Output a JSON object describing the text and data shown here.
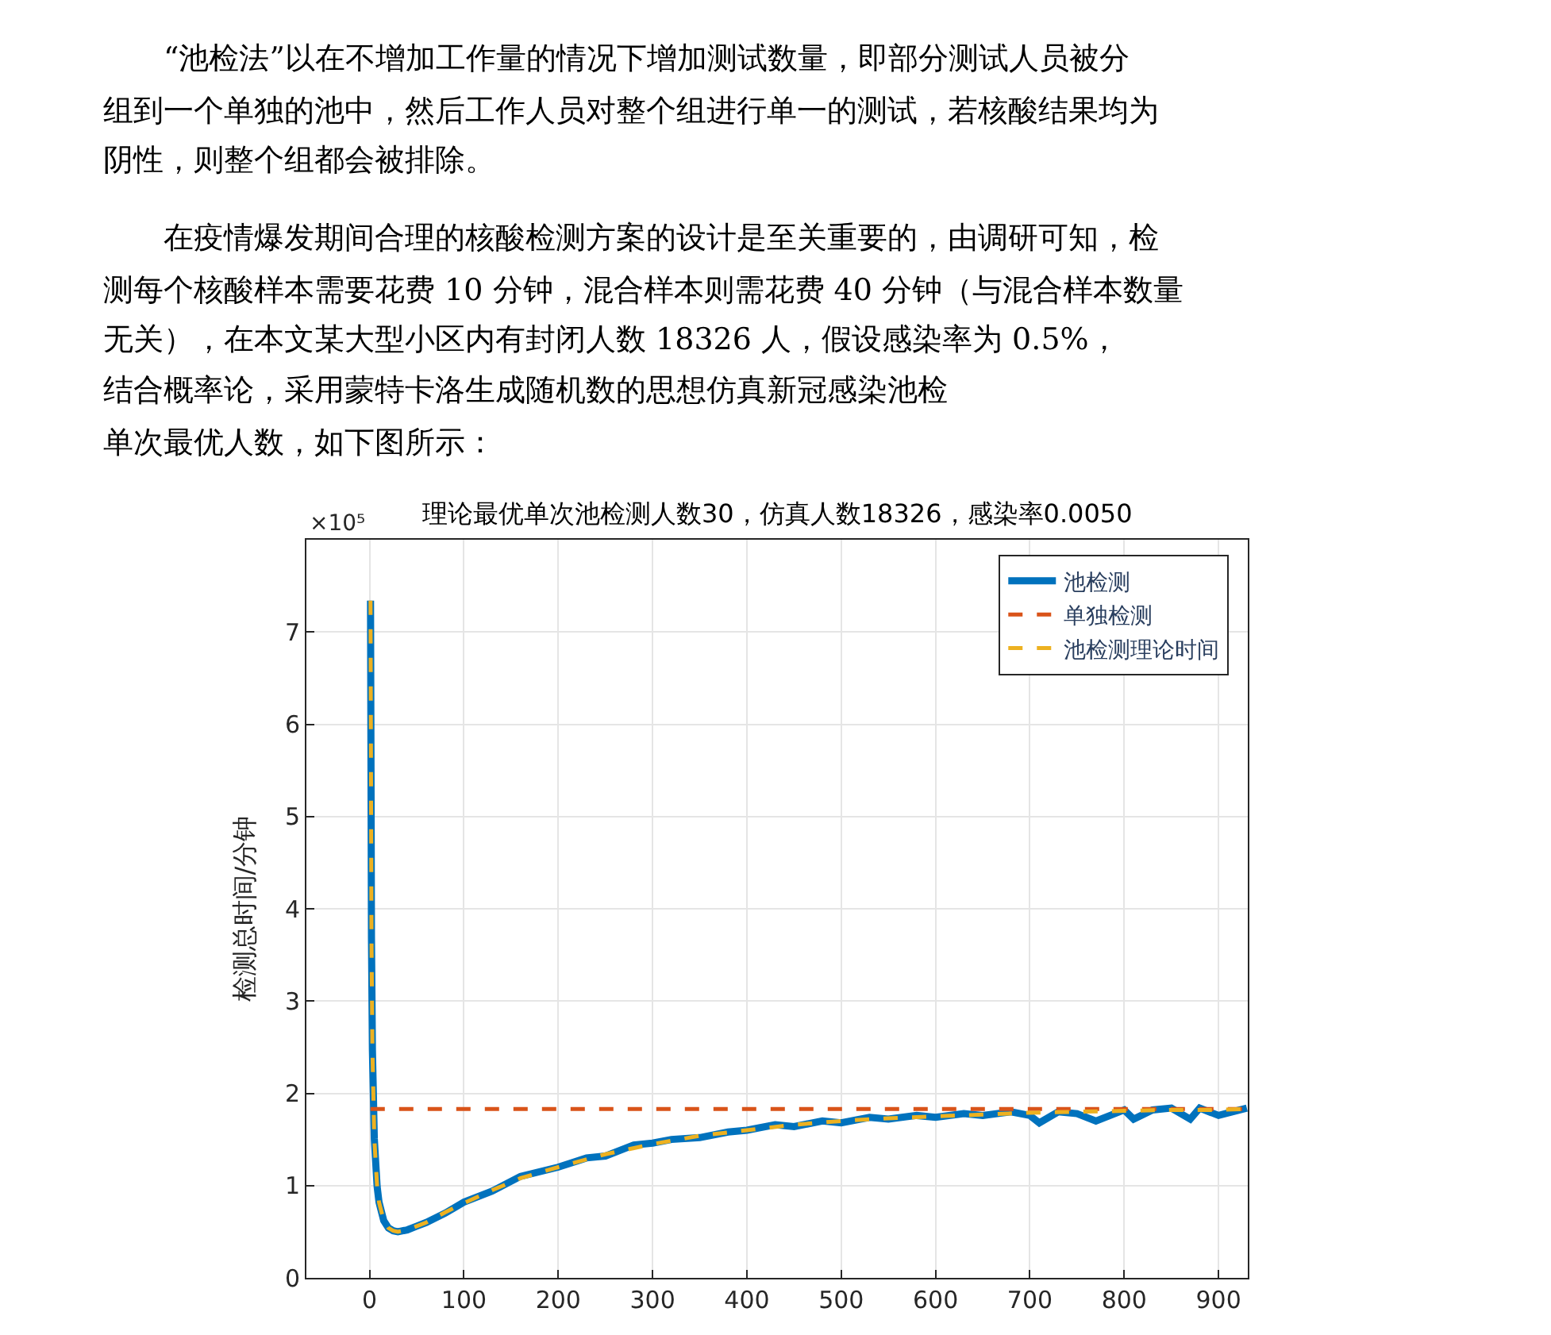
{
  "chart_data": {
    "type": "line",
    "title": "理论最优单次池检测人数30，仿真人数18326，感染率0.0050",
    "ylabel": "检测总时间/分钟",
    "annotations": [
      "　　“池检法”以在不增加工作量的情况下增加测试数量，即部分测试人员被分",
      "组到一个单独的池中，然后工作人员对整个组进行单一的测试，若核酸结果均为",
      "阴性，则整个组都会被排除。",
      "　　在疫情爆发期间合理的核酸检测方案的设计是至关重要的，由调研可知，检",
      "测每个核酸样本需要花费 10 分钟，混合样本则需花费 40 分钟（与混合样本数量",
      "无关），在本文某大型小区内有封闭人数 18326 人，假设感染率为 0.5%，",
      "结合概率论，采用蒙特卡洛生成随机数的思想仿真新冠感染池检",
      "单次最优人数，如下图所示：",
      "×10⁵"
    ],
    "xlim": [
      -67,
      931
    ],
    "xticks": [
      0,
      100,
      200,
      300,
      400,
      500,
      600,
      700,
      800,
      900
    ],
    "ylim": [
      0,
      8
    ],
    "yticks": [
      0,
      1,
      2,
      3,
      4,
      5,
      6,
      7
    ],
    "grid": true,
    "legend": "top right",
    "series": [
      {
        "name": "池检测",
        "color": "#0072bd",
        "line_style": "solid",
        "x": [
          1,
          2,
          3,
          5,
          8,
          10,
          15,
          20,
          25,
          30,
          40,
          50,
          60,
          80,
          100,
          130,
          160,
          200,
          230,
          250,
          280,
          300,
          320,
          350,
          380,
          400,
          430,
          450,
          480,
          500,
          530,
          550,
          580,
          600,
          630,
          650,
          680,
          700,
          710,
          730,
          750,
          770,
          800,
          810,
          830,
          850,
          870,
          880,
          900,
          930
        ],
        "values": [
          7.34,
          3.68,
          2.47,
          1.51,
          0.99,
          0.82,
          0.62,
          0.54,
          0.51,
          0.5,
          0.52,
          0.56,
          0.6,
          0.7,
          0.82,
          0.94,
          1.1,
          1.2,
          1.3,
          1.32,
          1.44,
          1.46,
          1.5,
          1.52,
          1.58,
          1.6,
          1.66,
          1.64,
          1.7,
          1.68,
          1.74,
          1.72,
          1.76,
          1.74,
          1.78,
          1.76,
          1.8,
          1.76,
          1.68,
          1.8,
          1.78,
          1.7,
          1.82,
          1.72,
          1.82,
          1.84,
          1.72,
          1.84,
          1.76,
          1.84
        ]
      },
      {
        "name": "单独检测",
        "color": "#d95319",
        "line_style": "dashed",
        "x": [
          1,
          930
        ],
        "values": [
          1.83,
          1.83
        ]
      },
      {
        "name": "池检测理论时间",
        "color": "#edb120",
        "line_style": "dashed",
        "x": [
          1,
          2,
          3,
          5,
          8,
          10,
          15,
          20,
          25,
          30,
          40,
          50,
          60,
          80,
          100,
          130,
          160,
          200,
          250,
          300,
          350,
          400,
          450,
          500,
          550,
          600,
          650,
          700,
          750,
          800,
          850,
          900,
          930
        ],
        "values": [
          7.34,
          3.68,
          2.47,
          1.51,
          0.99,
          0.82,
          0.62,
          0.54,
          0.51,
          0.5,
          0.52,
          0.56,
          0.6,
          0.71,
          0.81,
          0.95,
          1.08,
          1.2,
          1.34,
          1.45,
          1.54,
          1.6,
          1.66,
          1.7,
          1.73,
          1.75,
          1.77,
          1.79,
          1.8,
          1.81,
          1.82,
          1.82,
          1.83
        ]
      }
    ]
  }
}
